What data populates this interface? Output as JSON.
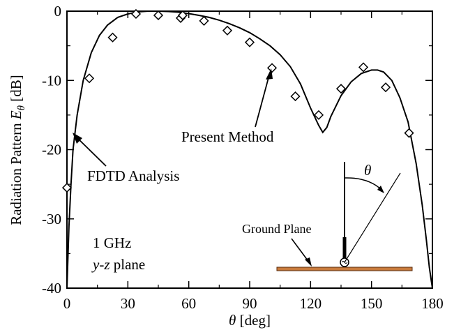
{
  "chart_data": {
    "type": "line",
    "title": "",
    "xlabel_symbol": "θ",
    "xlabel_unit": " [deg]",
    "ylabel_text": "Radiation Pattern ",
    "ylabel_symbol": "E",
    "ylabel_sub": "θ",
    "ylabel_unit": " [dB]",
    "xlim": [
      0,
      180
    ],
    "ylim": [
      -40,
      0
    ],
    "x_ticks": [
      0,
      30,
      60,
      90,
      120,
      150,
      180
    ],
    "y_ticks": [
      0,
      -10,
      -20,
      -30,
      -40
    ],
    "grid": false,
    "series": [
      {
        "name": "Present Method",
        "style": "solid-line",
        "x": [
          0,
          1,
          2,
          3,
          5,
          8,
          12,
          16,
          20,
          25,
          30,
          35,
          40,
          45,
          50,
          55,
          60,
          65,
          70,
          75,
          80,
          85,
          90,
          95,
          100,
          105,
          110,
          115,
          120,
          124,
          126,
          128,
          130,
          135,
          140,
          145,
          150,
          153,
          156,
          160,
          164,
          168,
          172,
          175,
          177,
          178.5,
          179.5,
          180
        ],
        "y": [
          -40,
          -31,
          -25,
          -20,
          -15,
          -10,
          -6,
          -3.5,
          -2,
          -0.9,
          -0.4,
          -0.1,
          0,
          0,
          -0.05,
          -0.15,
          -0.35,
          -0.6,
          -0.9,
          -1.3,
          -1.8,
          -2.4,
          -3.1,
          -4,
          -5,
          -6.3,
          -8,
          -10.5,
          -14,
          -16.5,
          -17.5,
          -16.8,
          -15.2,
          -12.2,
          -10.2,
          -9,
          -8.5,
          -8.5,
          -8.8,
          -10,
          -12.5,
          -16,
          -22,
          -28,
          -33,
          -37,
          -39,
          -40
        ]
      },
      {
        "name": "FDTD Analysis",
        "style": "diamond-markers",
        "x": [
          0,
          11,
          22.5,
          34,
          45,
          56,
          57,
          67.5,
          79,
          90,
          101,
          112.5,
          124,
          135,
          146,
          157,
          168.5
        ],
        "y": [
          -25.5,
          -9.7,
          -3.8,
          -0.4,
          -0.6,
          -1,
          -0.6,
          -1.4,
          -2.8,
          -4.5,
          -8.2,
          -12.3,
          -15,
          -11.2,
          -8.1,
          -11,
          -17.6
        ]
      }
    ],
    "annotations": {
      "present_method_label": "Present Method",
      "fdtd_label": "FDTD Analysis",
      "frequency_label": "1 GHz",
      "plane_label_italic": "y-z",
      "plane_label_rest": " plane",
      "ground_plane_label": "Ground Plane",
      "theta_symbol": "θ"
    },
    "colors": {
      "line": "#000000",
      "markers": "#000000",
      "ground_plane_fill": "#c87a3c",
      "ground_plane_edge": "#5a2e10"
    }
  }
}
